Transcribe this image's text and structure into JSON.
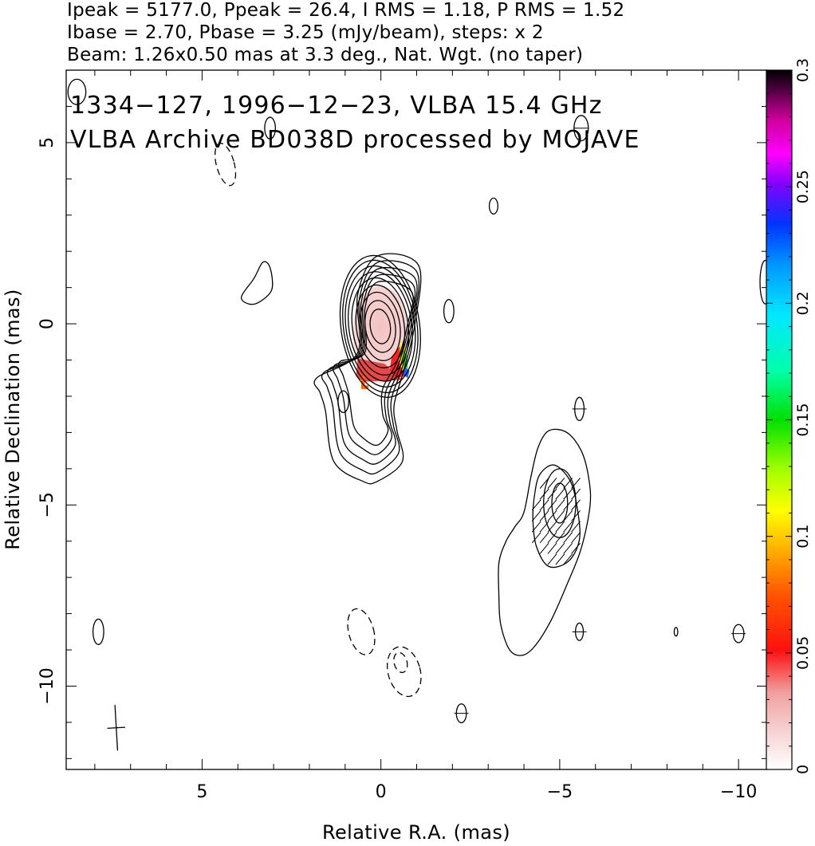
{
  "header": {
    "line1": "Ipeak = 5177.0, Ppeak = 26.4, I RMS = 1.18, P RMS = 1.52",
    "line2": "Ibase = 2.70, Pbase = 3.25 (mJy/beam), steps: x 2",
    "line3": "Beam: 1.26x0.50 mas at 3.3 deg., Nat. Wgt. (no taper)"
  },
  "annotation": {
    "line1": "1334−127, 1996−12−23, VLBA 15.4 GHz",
    "line2": "VLBA Archive BD038D processed by MOJAVE"
  },
  "chart_data": {
    "type": "heatmap",
    "subtype": "radio contour map with polarization color overlay",
    "xlabel": "Relative R.A. (mas)",
    "ylabel": "Relative Declination (mas)",
    "xlim": [
      8.8,
      -10.8
    ],
    "ylim": [
      -12.3,
      7.0
    ],
    "x_ticks": [
      5,
      0,
      -5,
      -10
    ],
    "x_tick_labels": [
      "5",
      "0",
      "−5",
      "−10"
    ],
    "y_ticks": [
      5,
      0,
      -5,
      -10
    ],
    "y_tick_labels": [
      "5",
      "0",
      "−5",
      "−10"
    ],
    "x_minor_step": 1,
    "y_minor_step": 1,
    "colorbar": {
      "min": 0,
      "max": 0.3,
      "ticks": [
        0,
        0.05,
        0.1,
        0.15,
        0.2,
        0.25,
        0.3
      ],
      "tick_labels": [
        "0",
        "0.05",
        "0.1",
        "0.15",
        "0.2",
        "0.25",
        "0.3"
      ],
      "placement": "right"
    },
    "core": {
      "center": [
        0.0,
        -0.05
      ],
      "contour_semi_axes": [
        [
          0.28,
          0.48
        ],
        [
          0.42,
          0.72
        ],
        [
          0.55,
          0.95
        ],
        [
          0.67,
          1.15
        ],
        [
          0.78,
          1.35
        ],
        [
          0.88,
          1.52
        ],
        [
          0.96,
          1.68
        ],
        [
          1.03,
          1.84
        ],
        [
          1.1,
          1.97
        ]
      ]
    },
    "core_jet_contour_spans": [
      [
        0.9,
        -1.4,
        -3.2
      ],
      [
        1.05,
        -1.5,
        -3.45
      ],
      [
        1.2,
        -1.6,
        -3.7
      ],
      [
        1.35,
        -1.7,
        -3.95
      ],
      [
        1.55,
        -1.85,
        -4.2
      ]
    ],
    "core_jet_inner_blob": {
      "center": [
        1.05,
        -2.15
      ],
      "semi_axes": [
        0.15,
        0.3
      ]
    },
    "jet_component": {
      "center": [
        -5.0,
        -4.95
      ],
      "contour_semi_axes": [
        [
          0.22,
          0.55
        ],
        [
          0.45,
          0.95
        ]
      ],
      "outer_contour": [
        [
          -4.7,
          -2.95
        ],
        [
          -5.2,
          -3.0
        ],
        [
          -5.6,
          -3.5
        ],
        [
          -5.8,
          -4.2
        ],
        [
          -5.85,
          -5.0
        ],
        [
          -5.6,
          -6.2
        ],
        [
          -5.2,
          -7.2
        ],
        [
          -4.75,
          -8.2
        ],
        [
          -4.3,
          -8.9
        ],
        [
          -3.95,
          -9.15
        ],
        [
          -3.6,
          -9.0
        ],
        [
          -3.35,
          -8.3
        ],
        [
          -3.3,
          -7.5
        ],
        [
          -3.3,
          -6.6
        ],
        [
          -3.5,
          -6.0
        ],
        [
          -3.75,
          -5.6
        ],
        [
          -4.0,
          -5.2
        ],
        [
          -4.2,
          -4.2
        ],
        [
          -4.4,
          -3.4
        ]
      ]
    },
    "polarization_overlay": {
      "peak_center": [
        0.0,
        -0.3
      ],
      "colors": [
        "#f6cccc",
        "#f0a0a0",
        "#e54848",
        "#ff2020",
        "#ff6600",
        "#ffff00",
        "#33dd33",
        "#1a5fff"
      ]
    },
    "isolated_solid_contours": [
      {
        "c": [
          -5.6,
          5.4
        ],
        "r": [
          0.2,
          0.35
        ]
      },
      {
        "c": [
          -3.15,
          3.25
        ],
        "r": [
          0.12,
          0.22
        ]
      },
      {
        "c": [
          -1.9,
          0.35
        ],
        "r": [
          0.14,
          0.32
        ]
      },
      {
        "c": [
          3.1,
          5.4
        ],
        "r": [
          0.15,
          0.3
        ]
      },
      {
        "c": [
          8.5,
          6.4
        ],
        "r": [
          0.25,
          0.35
        ]
      },
      {
        "c": [
          -5.55,
          -2.35
        ],
        "r": [
          0.13,
          0.32
        ]
      },
      {
        "c": [
          -5.55,
          -8.5
        ],
        "r": [
          0.11,
          0.24
        ]
      },
      {
        "c": [
          -10.0,
          -8.55
        ],
        "r": [
          0.15,
          0.25
        ]
      },
      {
        "c": [
          -8.25,
          -8.5
        ],
        "r": [
          0.05,
          0.12
        ]
      },
      {
        "c": [
          -2.25,
          -10.75
        ],
        "r": [
          0.14,
          0.26
        ]
      },
      {
        "c": [
          7.9,
          -8.5
        ],
        "r": [
          0.15,
          0.35
        ]
      },
      {
        "c": [
          -10.75,
          1.15
        ],
        "r": [
          0.15,
          0.6
        ]
      }
    ],
    "isolated_solid_blob": [
      [
        3.9,
        0.75
      ],
      [
        3.55,
        1.25
      ],
      [
        3.3,
        1.7
      ],
      [
        3.1,
        1.55
      ],
      [
        3.05,
        0.95
      ],
      [
        3.4,
        0.6
      ],
      [
        3.7,
        0.55
      ]
    ],
    "isolated_dashed_contours": [
      {
        "c": [
          4.35,
          4.4
        ],
        "r": [
          0.25,
          0.6
        ]
      },
      {
        "c": [
          0.55,
          -8.5
        ],
        "r": [
          0.35,
          0.65
        ]
      },
      {
        "c": [
          -0.65,
          -9.6
        ],
        "r": [
          0.45,
          0.7
        ]
      },
      {
        "c": [
          -0.55,
          -9.35
        ],
        "r": [
          0.18,
          0.28
        ]
      }
    ],
    "beam_cross": {
      "center": [
        7.4,
        -11.15
      ],
      "major": 1.26,
      "minor": 0.5,
      "angle_deg": 3.3
    }
  }
}
